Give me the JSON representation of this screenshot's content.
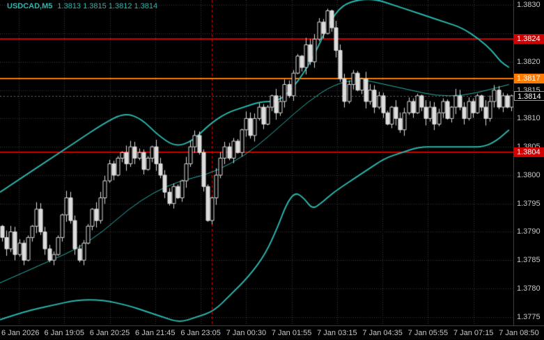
{
  "chart": {
    "symbol_period": "USDCAD,M5",
    "ohlc_line": "1.3813 1.3815 1.3812 1.3814"
  },
  "colors": {
    "background": "#000000",
    "grid": "#3a3a3a",
    "band": "#2bb5ad",
    "title": "#2bb5ad",
    "candle_border": "#dcdcdc",
    "candle_up_fill": "#000000",
    "candle_down_fill": "#dcdcdc",
    "red_level": "#d10000",
    "orange_level": "#ff7a00",
    "day_separator": "#c40000",
    "axis_text": "#c8c8c8",
    "bid_badge_bg": "#000000",
    "bid_badge_border": "#9a9a9a",
    "badge_text": "#ffffff"
  },
  "chart_data": {
    "type": "candlestick",
    "symbol": "USDCAD",
    "timeframe": "M5",
    "indicator": "Bollinger Bands",
    "price_range": [
      1.37735,
      1.38309
    ],
    "y_tick_labels": [
      "1.3830",
      "1.3825",
      "1.3820",
      "1.3815",
      "1.3810",
      "1.3805",
      "1.3800",
      "1.3795",
      "1.3790",
      "1.3785",
      "1.3780",
      "1.3775"
    ],
    "hidden_y_labels": [
      "1.3825"
    ],
    "x_tick_labels": [
      "6 Jan 2026",
      "6 Jan 19:05",
      "6 Jan 20:25",
      "6 Jan 21:45",
      "6 Jan 23:05",
      "7 Jan 00:30",
      "7 Jan 01:55",
      "7 Jan 03:15",
      "7 Jan 04:35",
      "7 Jan 05:55",
      "7 Jan 07:15",
      "7 Jan 08:50"
    ],
    "first_open": 1.3791,
    "closes": [
      1.3789,
      1.3787,
      1.379,
      1.3786,
      1.3788,
      1.3785,
      1.3789,
      1.3791,
      1.3794,
      1.379,
      1.3787,
      1.3785,
      1.3786,
      1.3789,
      1.3793,
      1.3796,
      1.3792,
      1.3787,
      1.3785,
      1.3788,
      1.3791,
      1.3794,
      1.3792,
      1.3796,
      1.3799,
      1.3802,
      1.38,
      1.3803,
      1.3804,
      1.3802,
      1.3805,
      1.3803,
      1.3804,
      1.3801,
      1.3803,
      1.3805,
      1.3802,
      1.38,
      1.3797,
      1.3795,
      1.3798,
      1.3796,
      1.3799,
      1.3802,
      1.3805,
      1.3807,
      1.3804,
      1.3798,
      1.3792,
      1.3796,
      1.38,
      1.3803,
      1.3805,
      1.3803,
      1.3806,
      1.3804,
      1.3808,
      1.381,
      1.3807,
      1.381,
      1.3812,
      1.3809,
      1.3812,
      1.3814,
      1.3811,
      1.3813,
      1.3816,
      1.3814,
      1.3818,
      1.3821,
      1.3819,
      1.3823,
      1.382,
      1.3824,
      1.3827,
      1.3825,
      1.3829,
      1.3826,
      1.3822,
      1.3817,
      1.3813,
      1.3816,
      1.3818,
      1.3815,
      1.3817,
      1.3813,
      1.3815,
      1.3812,
      1.3814,
      1.3811,
      1.3809,
      1.3812,
      1.381,
      1.3808,
      1.3811,
      1.3813,
      1.3811,
      1.3814,
      1.3812,
      1.381,
      1.3812,
      1.3809,
      1.3811,
      1.3813,
      1.381,
      1.3812,
      1.3814,
      1.3812,
      1.381,
      1.3813,
      1.3811,
      1.3814,
      1.3812,
      1.381,
      1.3813,
      1.3815,
      1.3812,
      1.3814,
      1.3812,
      1.3814
    ],
    "bands": {
      "upper": [
        [
          0,
          1.3797
        ],
        [
          6,
          1.38
        ],
        [
          12,
          1.3803
        ],
        [
          18,
          1.3806
        ],
        [
          24,
          1.3809
        ],
        [
          29,
          1.3811
        ],
        [
          33,
          1.381
        ],
        [
          37,
          1.3807
        ],
        [
          41,
          1.3805
        ],
        [
          45,
          1.3806
        ],
        [
          49,
          1.3809
        ],
        [
          53,
          1.3811
        ],
        [
          57,
          1.3812
        ],
        [
          61,
          1.3813
        ],
        [
          65,
          1.3813
        ],
        [
          68,
          1.3815
        ],
        [
          71,
          1.3818
        ],
        [
          74,
          1.3822
        ],
        [
          77,
          1.3827
        ],
        [
          80,
          1.383
        ],
        [
          84,
          1.3831
        ],
        [
          88,
          1.3831
        ],
        [
          92,
          1.383
        ],
        [
          96,
          1.3829
        ],
        [
          100,
          1.3828
        ],
        [
          104,
          1.3827
        ],
        [
          108,
          1.3826
        ],
        [
          112,
          1.3824
        ],
        [
          115,
          1.3822
        ],
        [
          117,
          1.382
        ],
        [
          119,
          1.3819
        ]
      ],
      "middle": [
        [
          0,
          1.3781
        ],
        [
          6,
          1.3783
        ],
        [
          12,
          1.3785
        ],
        [
          18,
          1.3787
        ],
        [
          24,
          1.379
        ],
        [
          30,
          1.3794
        ],
        [
          36,
          1.3797
        ],
        [
          42,
          1.3799
        ],
        [
          48,
          1.38
        ],
        [
          54,
          1.3802
        ],
        [
          60,
          1.3805
        ],
        [
          66,
          1.3809
        ],
        [
          72,
          1.3813
        ],
        [
          78,
          1.3816
        ],
        [
          84,
          1.3817
        ],
        [
          90,
          1.3816
        ],
        [
          96,
          1.3815
        ],
        [
          102,
          1.3814
        ],
        [
          108,
          1.3814
        ],
        [
          114,
          1.3815
        ],
        [
          119,
          1.3816
        ]
      ],
      "lower": [
        [
          0,
          1.37745
        ],
        [
          6,
          1.3776
        ],
        [
          12,
          1.3777
        ],
        [
          18,
          1.3778
        ],
        [
          24,
          1.3778
        ],
        [
          30,
          1.3777
        ],
        [
          34,
          1.3776
        ],
        [
          38,
          1.3775
        ],
        [
          42,
          1.3774
        ],
        [
          46,
          1.3775
        ],
        [
          50,
          1.3776
        ],
        [
          54,
          1.3779
        ],
        [
          58,
          1.3782
        ],
        [
          62,
          1.3786
        ],
        [
          65,
          1.3791
        ],
        [
          67,
          1.3795
        ],
        [
          69,
          1.3797
        ],
        [
          71,
          1.3796
        ],
        [
          73,
          1.3794
        ],
        [
          75,
          1.3795
        ],
        [
          78,
          1.3797
        ],
        [
          82,
          1.3799
        ],
        [
          86,
          1.3801
        ],
        [
          90,
          1.3803
        ],
        [
          94,
          1.3804
        ],
        [
          98,
          1.3805
        ],
        [
          102,
          1.3805
        ],
        [
          106,
          1.3805
        ],
        [
          110,
          1.3805
        ],
        [
          113,
          1.3805
        ],
        [
          116,
          1.3806
        ],
        [
          119,
          1.3808
        ]
      ]
    },
    "levels": [
      {
        "name": "resistance-level",
        "price": 1.3824,
        "label": "1.3824",
        "color": "#d10000"
      },
      {
        "name": "intermediate-level",
        "price": 1.3817,
        "label": "1.3817",
        "color": "#ff7a00"
      },
      {
        "name": "support-level",
        "price": 1.3804,
        "label": "1.3804",
        "color": "#d10000"
      }
    ],
    "bid": {
      "price": 1.3814,
      "label": "1.3814"
    },
    "day_separator_index": 49
  }
}
